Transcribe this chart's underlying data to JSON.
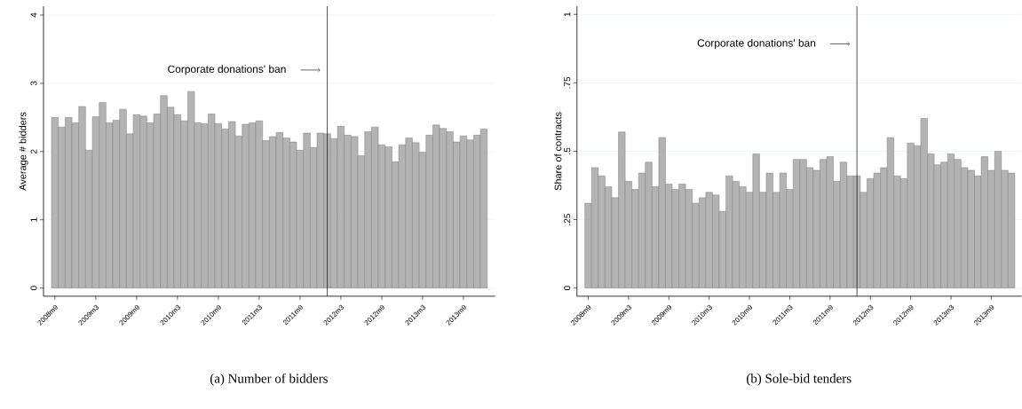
{
  "chart_data": [
    {
      "type": "bar",
      "title": "(a) Number of bidders",
      "ylabel": "Average # bidders",
      "color": "#b3b3b3",
      "grid": "y",
      "x": [
        "2008-09",
        "2008-10",
        "2008-11",
        "2008-12",
        "2009-01",
        "2009-02",
        "2009-03",
        "2009-04",
        "2009-05",
        "2009-06",
        "2009-07",
        "2009-08",
        "2009-09",
        "2009-10",
        "2009-11",
        "2009-12",
        "2010-01",
        "2010-02",
        "2010-03",
        "2010-04",
        "2010-05",
        "2010-06",
        "2010-07",
        "2010-08",
        "2010-09",
        "2010-10",
        "2010-11",
        "2010-12",
        "2011-01",
        "2011-02",
        "2011-03",
        "2011-04",
        "2011-05",
        "2011-06",
        "2011-07",
        "2011-08",
        "2011-09",
        "2011-10",
        "2011-11",
        "2011-12",
        "2012-01",
        "2012-02",
        "2012-03",
        "2012-04",
        "2012-05",
        "2012-06",
        "2012-07",
        "2012-08",
        "2012-09",
        "2012-10",
        "2012-11",
        "2012-12",
        "2013-01",
        "2013-02",
        "2013-03",
        "2013-04",
        "2013-05",
        "2013-06",
        "2013-07",
        "2013-08",
        "2013-09",
        "2013-10",
        "2013-11",
        "2013-12"
      ],
      "values": [
        2.5,
        2.36,
        2.5,
        2.42,
        2.66,
        2.02,
        2.51,
        2.72,
        2.42,
        2.46,
        2.62,
        2.26,
        2.54,
        2.52,
        2.42,
        2.55,
        2.82,
        2.65,
        2.54,
        2.45,
        2.88,
        2.42,
        2.41,
        2.55,
        2.41,
        2.33,
        2.44,
        2.23,
        2.4,
        2.42,
        2.45,
        2.16,
        2.22,
        2.28,
        2.2,
        2.14,
        2.02,
        2.27,
        2.06,
        2.27,
        2.26,
        2.19,
        2.37,
        2.24,
        2.22,
        1.94,
        2.29,
        2.36,
        2.1,
        2.07,
        1.85,
        2.1,
        2.2,
        2.13,
        1.99,
        2.24,
        2.39,
        2.34,
        2.29,
        2.14,
        2.23,
        2.17,
        2.24,
        2.33
      ],
      "xlim": [
        "2008-07-11",
        "2014-01-22"
      ],
      "ylim": [
        -0.12,
        4.13
      ],
      "xticks": [
        {
          "value": "2008-09",
          "label": "2008m9"
        },
        {
          "value": "2009-03",
          "label": "2009m3"
        },
        {
          "value": "2009-09",
          "label": "2009m9"
        },
        {
          "value": "2010-03",
          "label": "2010m3"
        },
        {
          "value": "2010-09",
          "label": "2010m9"
        },
        {
          "value": "2011-03",
          "label": "2011m3"
        },
        {
          "value": "2011-09",
          "label": "2011m9"
        },
        {
          "value": "2012-03",
          "label": "2012m3"
        },
        {
          "value": "2012-09",
          "label": "2012m9"
        },
        {
          "value": "2013-03",
          "label": "2013m3"
        },
        {
          "value": "2013-09",
          "label": "2013m9"
        }
      ],
      "yticks": [
        0,
        1,
        2,
        3,
        4
      ],
      "ref_lines": [
        {
          "axis": "x",
          "value": "2012-01",
          "label": "Corporate donations' ban"
        }
      ]
    },
    {
      "type": "bar",
      "title": "(b) Sole-bid tenders",
      "ylabel": "Share of contracts",
      "color": "#b3b3b3",
      "grid": "y",
      "x": [
        "2008-09",
        "2008-10",
        "2008-11",
        "2008-12",
        "2009-01",
        "2009-02",
        "2009-03",
        "2009-04",
        "2009-05",
        "2009-06",
        "2009-07",
        "2009-08",
        "2009-09",
        "2009-10",
        "2009-11",
        "2009-12",
        "2010-01",
        "2010-02",
        "2010-03",
        "2010-04",
        "2010-05",
        "2010-06",
        "2010-07",
        "2010-08",
        "2010-09",
        "2010-10",
        "2010-11",
        "2010-12",
        "2011-01",
        "2011-02",
        "2011-03",
        "2011-04",
        "2011-05",
        "2011-06",
        "2011-07",
        "2011-08",
        "2011-09",
        "2011-10",
        "2011-11",
        "2011-12",
        "2012-01",
        "2012-02",
        "2012-03",
        "2012-04",
        "2012-05",
        "2012-06",
        "2012-07",
        "2012-08",
        "2012-09",
        "2012-10",
        "2012-11",
        "2012-12",
        "2013-01",
        "2013-02",
        "2013-03",
        "2013-04",
        "2013-05",
        "2013-06",
        "2013-07",
        "2013-08",
        "2013-09",
        "2013-10",
        "2013-11",
        "2013-12"
      ],
      "values": [
        0.31,
        0.44,
        0.41,
        0.37,
        0.33,
        0.57,
        0.39,
        0.36,
        0.42,
        0.46,
        0.37,
        0.55,
        0.38,
        0.36,
        0.38,
        0.36,
        0.31,
        0.33,
        0.35,
        0.34,
        0.28,
        0.41,
        0.39,
        0.37,
        0.35,
        0.49,
        0.35,
        0.42,
        0.35,
        0.42,
        0.36,
        0.47,
        0.47,
        0.44,
        0.43,
        0.47,
        0.48,
        0.39,
        0.46,
        0.41,
        0.41,
        0.35,
        0.4,
        0.42,
        0.44,
        0.55,
        0.41,
        0.4,
        0.53,
        0.52,
        0.62,
        0.49,
        0.45,
        0.46,
        0.49,
        0.47,
        0.44,
        0.43,
        0.41,
        0.48,
        0.43,
        0.5,
        0.43,
        0.42
      ],
      "xlim": [
        "2008-07-11",
        "2014-01-17"
      ],
      "ylim": [
        -0.03,
        1.03
      ],
      "xticks": [
        {
          "value": "2008-09",
          "label": "2008m9"
        },
        {
          "value": "2009-03",
          "label": "2009m3"
        },
        {
          "value": "2009-09",
          "label": "2009m9"
        },
        {
          "value": "2010-03",
          "label": "2010m3"
        },
        {
          "value": "2010-09",
          "label": "2010m9"
        },
        {
          "value": "2011-03",
          "label": "2011m3"
        },
        {
          "value": "2011-09",
          "label": "2011m9"
        },
        {
          "value": "2012-03",
          "label": "2012m3"
        },
        {
          "value": "2012-09",
          "label": "2012m9"
        },
        {
          "value": "2013-03",
          "label": "2013m3"
        },
        {
          "value": "2013-09",
          "label": "2013m9"
        }
      ],
      "yticks": [
        0,
        {
          "value": 0.25,
          "label": ".25"
        },
        {
          "value": 0.5,
          "label": ".5"
        },
        {
          "value": 0.75,
          "label": ".75"
        },
        1
      ],
      "ref_lines": [
        {
          "axis": "x",
          "value": "2012-01",
          "label": "Corporate donations' ban"
        }
      ]
    }
  ]
}
